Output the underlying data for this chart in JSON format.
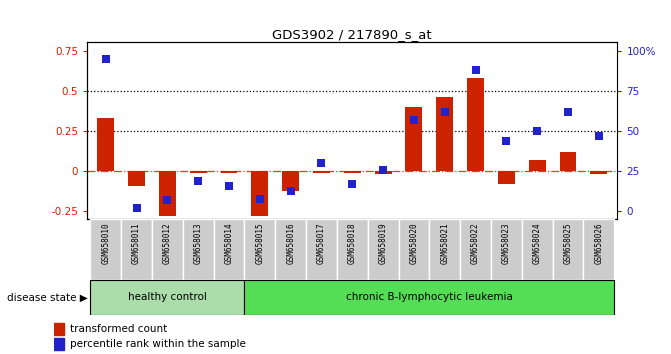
{
  "title": "GDS3902 / 217890_s_at",
  "samples": [
    "GSM658010",
    "GSM658011",
    "GSM658012",
    "GSM658013",
    "GSM658014",
    "GSM658015",
    "GSM658016",
    "GSM658017",
    "GSM658018",
    "GSM658019",
    "GSM658020",
    "GSM658021",
    "GSM658022",
    "GSM658023",
    "GSM658024",
    "GSM658025",
    "GSM658026"
  ],
  "transformed_count": [
    0.33,
    -0.09,
    -0.28,
    -0.01,
    -0.01,
    -0.28,
    -0.12,
    -0.01,
    -0.01,
    -0.02,
    0.4,
    0.46,
    0.58,
    -0.08,
    0.07,
    0.12,
    -0.02
  ],
  "percentile_rank": [
    95,
    2,
    7,
    19,
    16,
    8,
    13,
    30,
    17,
    26,
    57,
    62,
    88,
    44,
    50,
    62,
    47
  ],
  "healthy_control_count": 5,
  "bar_color": "#cc2200",
  "dot_color": "#2222cc",
  "ylim_left": [
    -0.3,
    0.8
  ],
  "yticks_left": [
    -0.25,
    0.0,
    0.25,
    0.5,
    0.75
  ],
  "ytick_labels_right": [
    "0",
    "25",
    "50",
    "75",
    "100%"
  ],
  "hline_values": [
    0.25,
    0.5
  ],
  "disease_state_label": "disease state",
  "healthy_label": "healthy control",
  "leukemia_label": "chronic B-lymphocytic leukemia",
  "legend_bar_label": "transformed count",
  "legend_dot_label": "percentile rank within the sample",
  "healthy_color": "#aaddaa",
  "leukemia_color": "#55dd55",
  "xticklabel_bg": "#cccccc"
}
